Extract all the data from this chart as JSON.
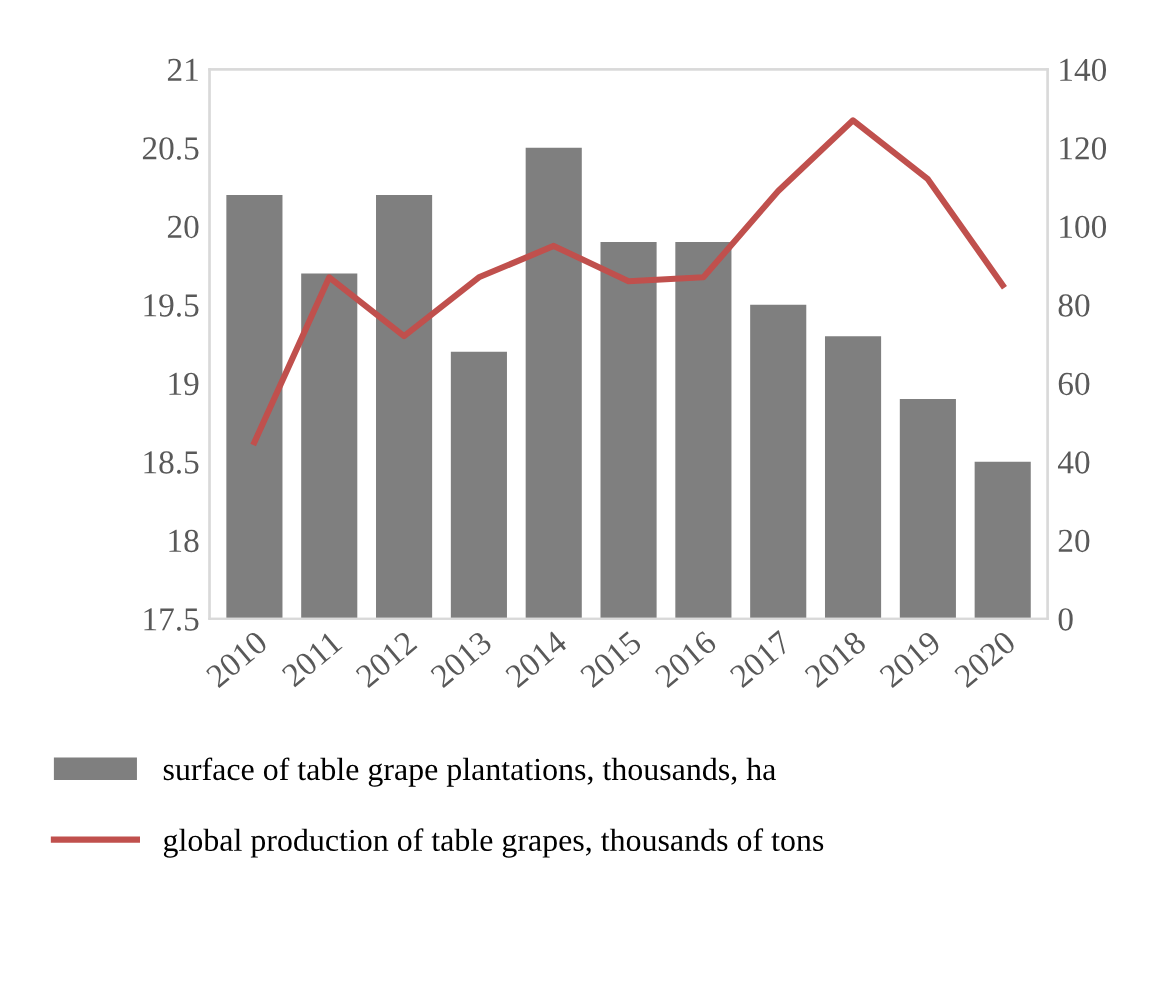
{
  "chart_data": {
    "type": "bar",
    "categories": [
      "2010",
      "2011",
      "2012",
      "2013",
      "2014",
      "2015",
      "2016",
      "2017",
      "2018",
      "2019",
      "2020"
    ],
    "series": [
      {
        "name": "surface of table grape plantations, thousands, ha",
        "color": "#7f7f7f",
        "values": [
          20.2,
          19.7,
          20.2,
          19.2,
          20.5,
          19.9,
          19.9,
          19.5,
          19.3,
          18.9,
          18.5
        ]
      },
      {
        "name": "global production of table grapes, thousands of tons",
        "type": "line",
        "axis": "y2",
        "color": "#c0504d",
        "values": [
          45,
          87,
          72,
          87,
          95,
          86,
          87,
          109,
          127,
          112,
          85
        ]
      }
    ],
    "ylim": [
      17.5,
      21
    ],
    "yticks": [
      17.5,
      18,
      18.5,
      19,
      19.5,
      20,
      20.5,
      21
    ],
    "y2lim": [
      0,
      140
    ],
    "y2ticks": [
      0,
      20,
      40,
      60,
      80,
      100,
      120,
      140
    ],
    "grid": false,
    "legend": "bottom",
    "marker": "none",
    "line_style": "solid"
  }
}
